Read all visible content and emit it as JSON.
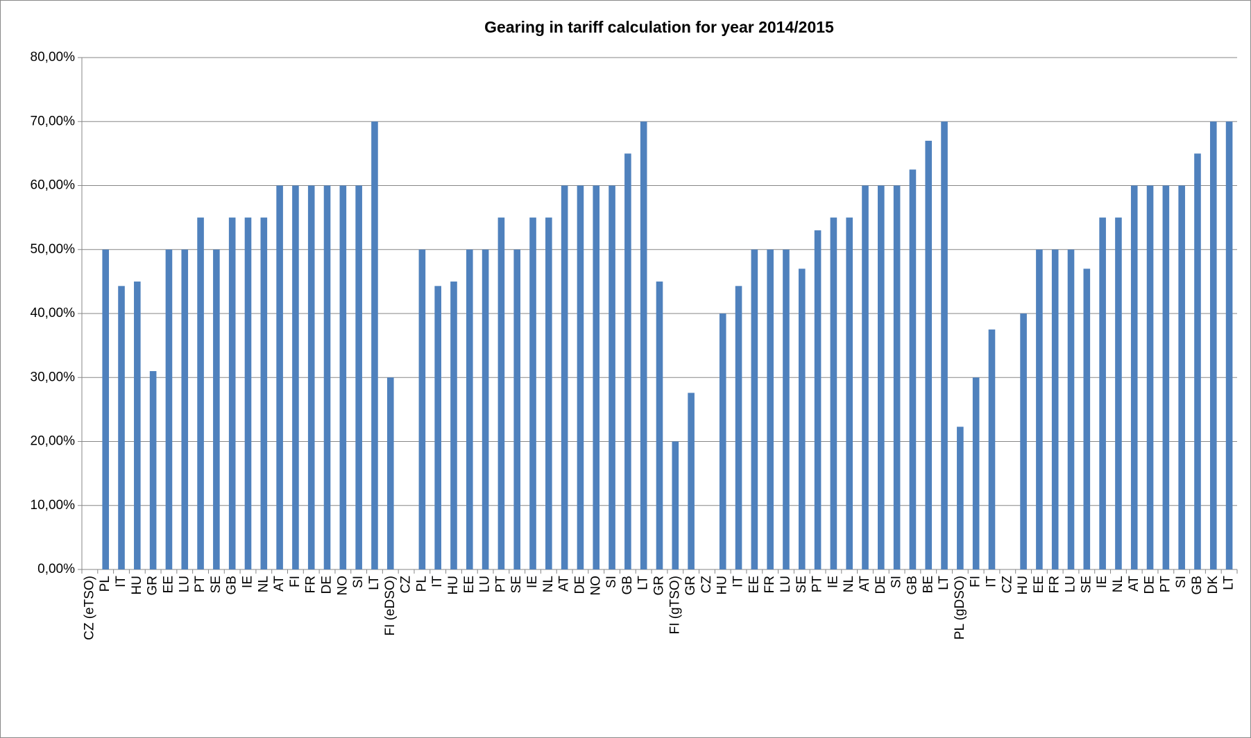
{
  "chart_data": {
    "type": "bar",
    "title": "Gearing in tariff calculation for year 2014/2015",
    "categories": [
      "CZ (eTSO)",
      "PL",
      "IT",
      "HU",
      "GR",
      "EE",
      "LU",
      "PT",
      "SE",
      "GB",
      "IE",
      "NL",
      "AT",
      "FI",
      "FR",
      "DE",
      "NO",
      "SI",
      "LT",
      "FI (eDSO)",
      "CZ",
      "PL",
      "IT",
      "HU",
      "EE",
      "LU",
      "PT",
      "SE",
      "IE",
      "NL",
      "AT",
      "DE",
      "NO",
      "SI",
      "GB",
      "LT",
      "GR",
      "FI (gTSO)",
      "GR",
      "CZ",
      "HU",
      "IT",
      "EE",
      "FR",
      "LU",
      "SE",
      "PT",
      "IE",
      "NL",
      "AT",
      "DE",
      "SI",
      "GB",
      "BE",
      "LT",
      "PL (gDSO)",
      "FI",
      "IT",
      "CZ",
      "HU",
      "EE",
      "FR",
      "LU",
      "SE",
      "IE",
      "NL",
      "AT",
      "DE",
      "PT",
      "SI",
      "GB",
      "DK",
      "LT"
    ],
    "values": [
      null,
      50,
      44.3,
      45,
      31,
      50,
      50,
      55,
      50,
      55,
      55,
      55,
      60,
      60,
      60,
      60,
      60,
      60,
      70,
      30,
      null,
      50,
      44.3,
      45,
      50,
      50,
      55,
      50,
      55,
      55,
      60,
      60,
      60,
      60,
      65,
      70,
      45,
      20,
      27.6,
      null,
      40,
      44.3,
      50,
      50,
      50,
      47,
      53,
      55,
      55,
      60,
      60,
      60,
      62.5,
      67,
      70,
      22.3,
      30,
      37.5,
      null,
      40,
      50,
      50,
      50,
      47,
      55,
      55,
      60,
      60,
      60,
      60,
      65,
      70,
      70
    ],
    "color": "#4f81bd",
    "ylim": [
      0,
      80
    ],
    "yticks": [
      {
        "value": 0,
        "label": "0,00%"
      },
      {
        "value": 10,
        "label": "10,00%"
      },
      {
        "value": 20,
        "label": "20,00%"
      },
      {
        "value": 30,
        "label": "30,00%"
      },
      {
        "value": 40,
        "label": "40,00%"
      },
      {
        "value": 50,
        "label": "50,00%"
      },
      {
        "value": 60,
        "label": "60,00%"
      },
      {
        "value": 70,
        "label": "70,00%"
      },
      {
        "value": 80,
        "label": "80,00%"
      }
    ],
    "grid": true
  }
}
